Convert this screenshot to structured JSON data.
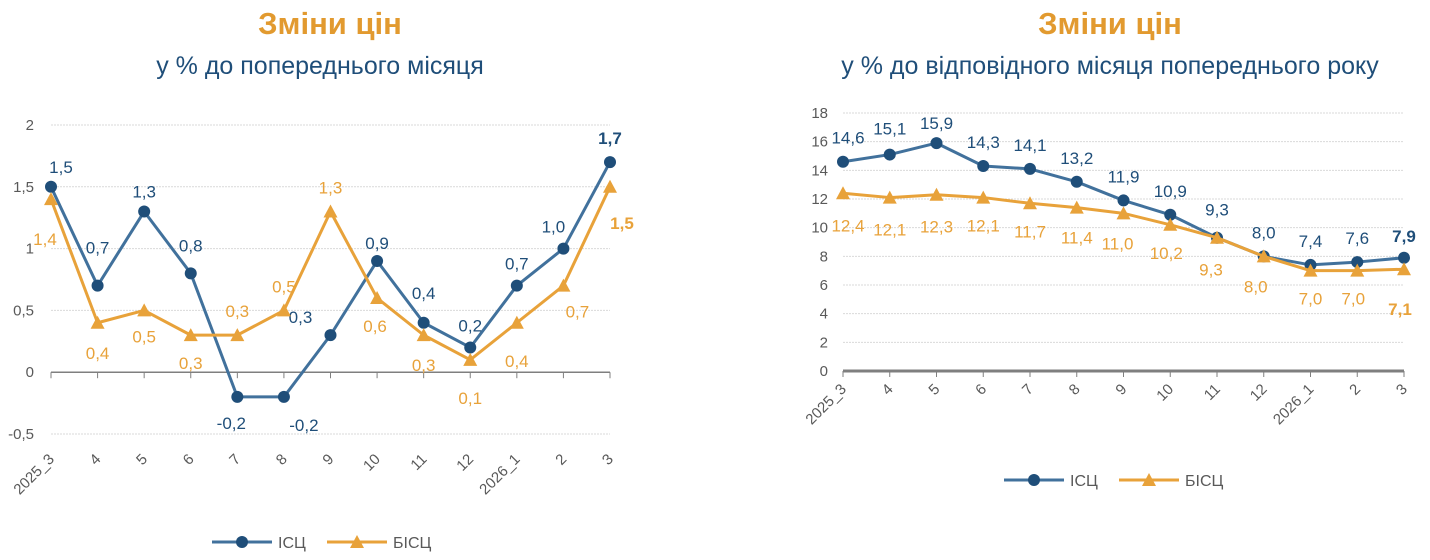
{
  "colors": {
    "isc": "#41719c",
    "isc_marker": "#1f4e79",
    "bisc": "#e8a23a",
    "title": "#e29a2f",
    "subtitle": "#1f4e79",
    "axis_text": "#595959",
    "grid": "#d9d9d9"
  },
  "chart_data": [
    {
      "type": "line",
      "title": "Зміни цін",
      "subtitle": "у % до попереднього місяця",
      "categories": [
        "2025_3",
        "4",
        "5",
        "6",
        "7",
        "8",
        "9",
        "10",
        "11",
        "12",
        "2026_1",
        "2",
        "3"
      ],
      "ylim": [
        -0.5,
        2
      ],
      "yticks": [
        -0.5,
        0,
        0.5,
        1,
        1.5,
        2
      ],
      "ytick_labels": [
        "-0,5",
        "0",
        "0,5",
        "1",
        "1,5",
        "2"
      ],
      "grid": true,
      "legend": "bottom",
      "series": [
        {
          "name": "ІСЦ",
          "marker": "circle",
          "values": [
            1.5,
            0.7,
            1.3,
            0.8,
            -0.2,
            -0.2,
            0.3,
            0.9,
            0.4,
            0.2,
            0.7,
            1.0,
            1.7
          ],
          "labels": [
            "1,5",
            "0,7",
            "1,3",
            "0,8",
            "-0,2",
            "-0,2",
            "0,3",
            "0,9",
            "0,4",
            "0,2",
            "0,7",
            "1,0",
            "1,7"
          ]
        },
        {
          "name": "БІСЦ",
          "marker": "triangle",
          "values": [
            1.4,
            0.4,
            0.5,
            0.3,
            0.3,
            0.5,
            1.3,
            0.6,
            0.3,
            0.1,
            0.4,
            0.7,
            1.5
          ],
          "labels": [
            "1,4",
            "0,4",
            "0,5",
            "0,3",
            "0,3",
            "0,5",
            "1,3",
            "0,6",
            "0,3",
            "0,1",
            "0,4",
            "0,7",
            "1,5"
          ]
        }
      ]
    },
    {
      "type": "line",
      "title": "Зміни цін",
      "subtitle": "у % до відповідного місяця попереднього року",
      "categories": [
        "2025_3",
        "4",
        "5",
        "6",
        "7",
        "8",
        "9",
        "10",
        "11",
        "12",
        "2026_1",
        "2",
        "3"
      ],
      "ylim": [
        0,
        18
      ],
      "yticks": [
        0,
        2,
        4,
        6,
        8,
        10,
        12,
        14,
        16,
        18
      ],
      "ytick_labels": [
        "0",
        "2",
        "4",
        "6",
        "8",
        "10",
        "12",
        "14",
        "16",
        "18"
      ],
      "grid": true,
      "legend": "bottom",
      "series": [
        {
          "name": "ІСЦ",
          "marker": "circle",
          "values": [
            14.6,
            15.1,
            15.9,
            14.3,
            14.1,
            13.2,
            11.9,
            10.9,
            9.3,
            8.0,
            7.4,
            7.6,
            7.9
          ],
          "labels": [
            "14,6",
            "15,1",
            "15,9",
            "14,3",
            "14,1",
            "13,2",
            "11,9",
            "10,9",
            "9,3",
            "8,0",
            "7,4",
            "7,6",
            "7,9"
          ]
        },
        {
          "name": "БІСЦ",
          "marker": "triangle",
          "values": [
            12.4,
            12.1,
            12.3,
            12.1,
            11.7,
            11.4,
            11.0,
            10.2,
            9.3,
            8.0,
            7.0,
            7.0,
            7.1
          ],
          "labels": [
            "12,4",
            "12,1",
            "12,3",
            "12,1",
            "11,7",
            "11,4",
            "11,0",
            "10,2",
            "9,3",
            "8,0",
            "7,0",
            "7,0",
            "7,1"
          ]
        }
      ]
    }
  ]
}
